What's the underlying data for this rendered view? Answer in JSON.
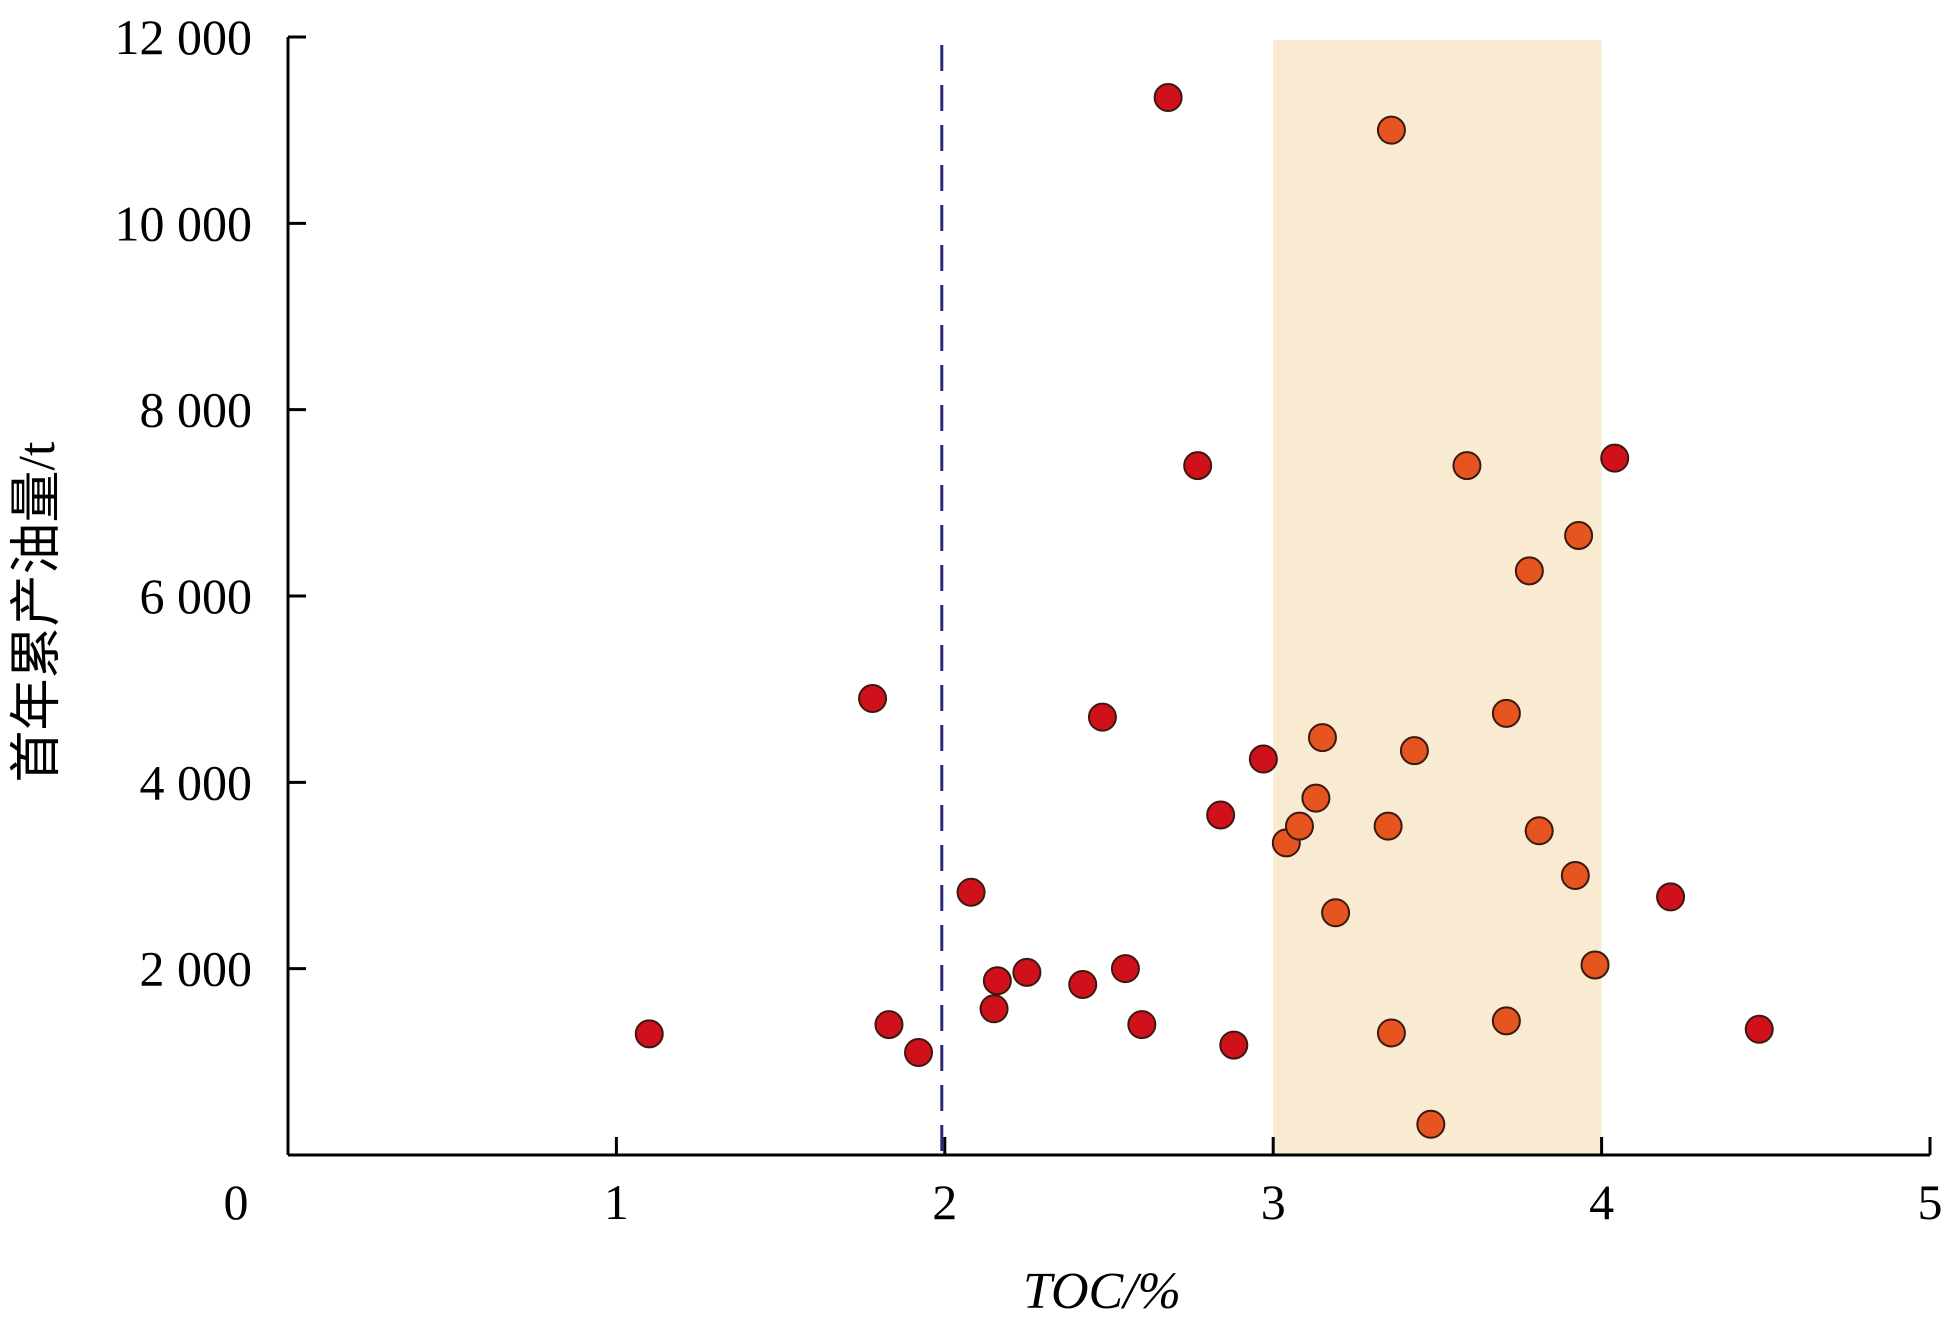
{
  "chart_data": {
    "type": "scatter",
    "title": "",
    "xlabel": "TOC/%",
    "ylabel": "首年累产油量/t",
    "xlim": [
      0,
      5
    ],
    "ylim": [
      0,
      12000
    ],
    "x_ticks": [
      0,
      1,
      2,
      3,
      4,
      5
    ],
    "x_tick_labels": [
      "0",
      "1",
      "2",
      "3",
      "4",
      "5"
    ],
    "y_ticks": [
      2000,
      4000,
      6000,
      8000,
      10000,
      12000
    ],
    "y_tick_labels": [
      "2 000",
      "4 000",
      "6 000",
      "8 000",
      "10 000",
      "12 000"
    ],
    "grid": false,
    "highlight_band": {
      "x_range": [
        3.0,
        4.0
      ],
      "color": "#f8ebd2"
    },
    "reference_line": {
      "x": 2.0,
      "style": "dashed",
      "color": "#2b2a7a"
    },
    "series": [
      {
        "color": "#d0101a",
        "points": [
          [
            1.1,
            1300
          ],
          [
            1.78,
            4900
          ],
          [
            1.83,
            1400
          ],
          [
            1.92,
            1100
          ],
          [
            2.08,
            2820
          ],
          [
            2.15,
            1570
          ],
          [
            2.16,
            1870
          ],
          [
            2.25,
            1960
          ],
          [
            2.42,
            1830
          ],
          [
            2.48,
            4700
          ],
          [
            2.55,
            2000
          ],
          [
            2.6,
            1400
          ],
          [
            2.68,
            11350
          ],
          [
            2.77,
            7400
          ],
          [
            2.84,
            3650
          ],
          [
            2.88,
            1180
          ],
          [
            2.97,
            4250
          ],
          [
            4.04,
            7480
          ],
          [
            4.21,
            2770
          ],
          [
            4.48,
            1350
          ]
        ]
      },
      {
        "color": "#e65420",
        "points": [
          [
            3.04,
            3350
          ],
          [
            3.08,
            3530
          ],
          [
            3.13,
            3830
          ],
          [
            3.15,
            4480
          ],
          [
            3.19,
            2600
          ],
          [
            3.35,
            3530
          ],
          [
            3.36,
            11000
          ],
          [
            3.36,
            1310
          ],
          [
            3.43,
            4340
          ],
          [
            3.48,
            330
          ],
          [
            3.59,
            7400
          ],
          [
            3.71,
            4740
          ],
          [
            3.71,
            1440
          ],
          [
            3.78,
            6270
          ],
          [
            3.81,
            3480
          ],
          [
            3.92,
            3000
          ],
          [
            3.93,
            6650
          ],
          [
            3.98,
            2040
          ]
        ]
      }
    ]
  }
}
